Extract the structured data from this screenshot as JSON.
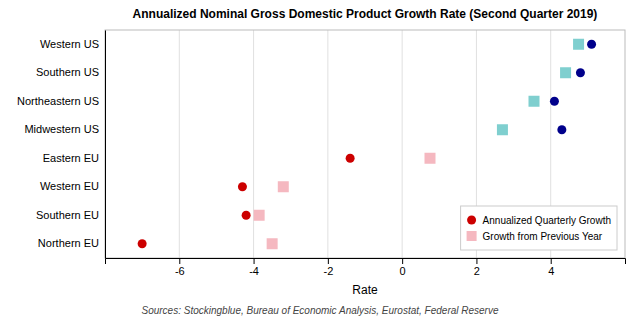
{
  "chart_data": {
    "type": "dot",
    "title": "Annualized Nominal Gross Domestic Product Growth Rate (Second Quarter 2019)",
    "xlabel": "Rate",
    "source": "Sources: Stockingblue, Bureau of Economic Analysis, Eurostat, Federal Reserve",
    "orientation": "horizontal",
    "categories": [
      "Northern EU",
      "Southern EU",
      "Western EU",
      "Eastern EU",
      "Midwestern US",
      "Northeastern US",
      "Southern US",
      "Western US"
    ],
    "series": [
      {
        "name": "Annualized Quarterly Growth",
        "marker": "circle",
        "color": "#cc0000",
        "colors": [
          "#cc0000",
          "#cc0000",
          "#cc0000",
          "#cc0000",
          "#00008b",
          "#00008b",
          "#00008b",
          "#00008b"
        ],
        "values": [
          -7.0,
          -4.2,
          -4.3,
          -1.4,
          4.3,
          4.1,
          4.8,
          5.1
        ]
      },
      {
        "name": "Growth from Previous Year",
        "marker": "square",
        "color": "#f5b8c0",
        "colors": [
          "#f5b8c0",
          "#f5b8c0",
          "#f5b8c0",
          "#f5b8c0",
          "#7fcfcf",
          "#7fcfcf",
          "#7fcfcf",
          "#7fcfcf"
        ],
        "values": [
          -3.5,
          -3.85,
          -3.2,
          0.75,
          2.7,
          3.55,
          4.4,
          4.75
        ]
      }
    ],
    "xlim": [
      -8,
      6
    ],
    "xticks": [
      -6,
      -4,
      -2,
      0,
      2,
      4
    ],
    "grid": true,
    "legend": "lower right"
  }
}
